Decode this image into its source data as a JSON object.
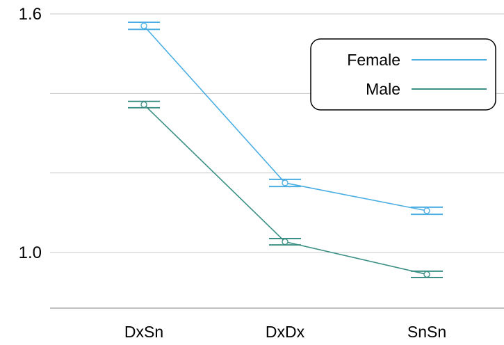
{
  "chart_data": {
    "type": "line",
    "categories": [
      "DxSn",
      "DxDx",
      "SnSn"
    ],
    "series": [
      {
        "name": "Female",
        "color": "#4aaee3",
        "values": [
          1.57,
          1.175,
          1.105
        ],
        "error_low": [
          1.561,
          1.166,
          1.096
        ],
        "error_high": [
          1.579,
          1.184,
          1.114
        ]
      },
      {
        "name": "Male",
        "color": "#3b8f84",
        "values": [
          1.372,
          1.027,
          0.945
        ],
        "error_low": [
          1.364,
          1.019,
          0.937
        ],
        "error_high": [
          1.38,
          1.035,
          0.953
        ]
      }
    ],
    "y_tick_labels": [
      "1.6",
      "1.0"
    ],
    "y_gridlines": [
      1.6,
      1.4,
      1.2,
      1.0
    ],
    "ylim": [
      0.86,
      1.6
    ],
    "grid": true,
    "legend": "top-right",
    "title": "",
    "xlabel": "",
    "ylabel": ""
  }
}
